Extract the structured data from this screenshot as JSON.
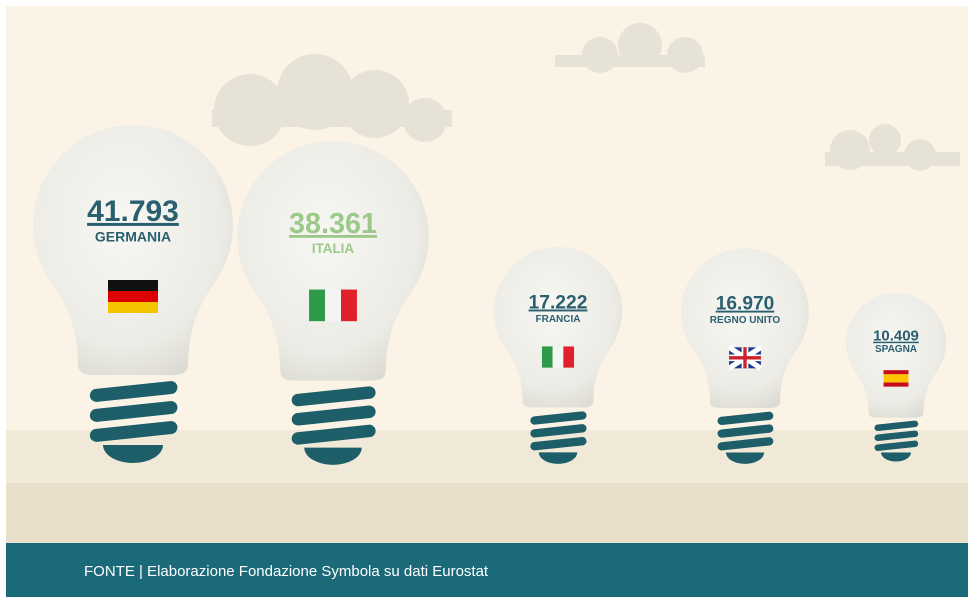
{
  "chart_data": {
    "type": "bulb",
    "categories": [
      "GERMANIA",
      "ITALIA",
      "FRANCIA",
      "REGNO UNITO",
      "SPAGNA"
    ],
    "values": [
      41793,
      38361,
      17222,
      16970,
      10409
    ],
    "value_labels": [
      "41.793",
      "38.361",
      "17.222",
      "16.970",
      "10.409"
    ],
    "colors": [
      "#2a5f70",
      "#9cc98a",
      "#2a5f70",
      "#2a5f70",
      "#2a5f70"
    ],
    "source": "FONTE | Elaborazione Fondazione Symbola su dati Eurostat"
  }
}
